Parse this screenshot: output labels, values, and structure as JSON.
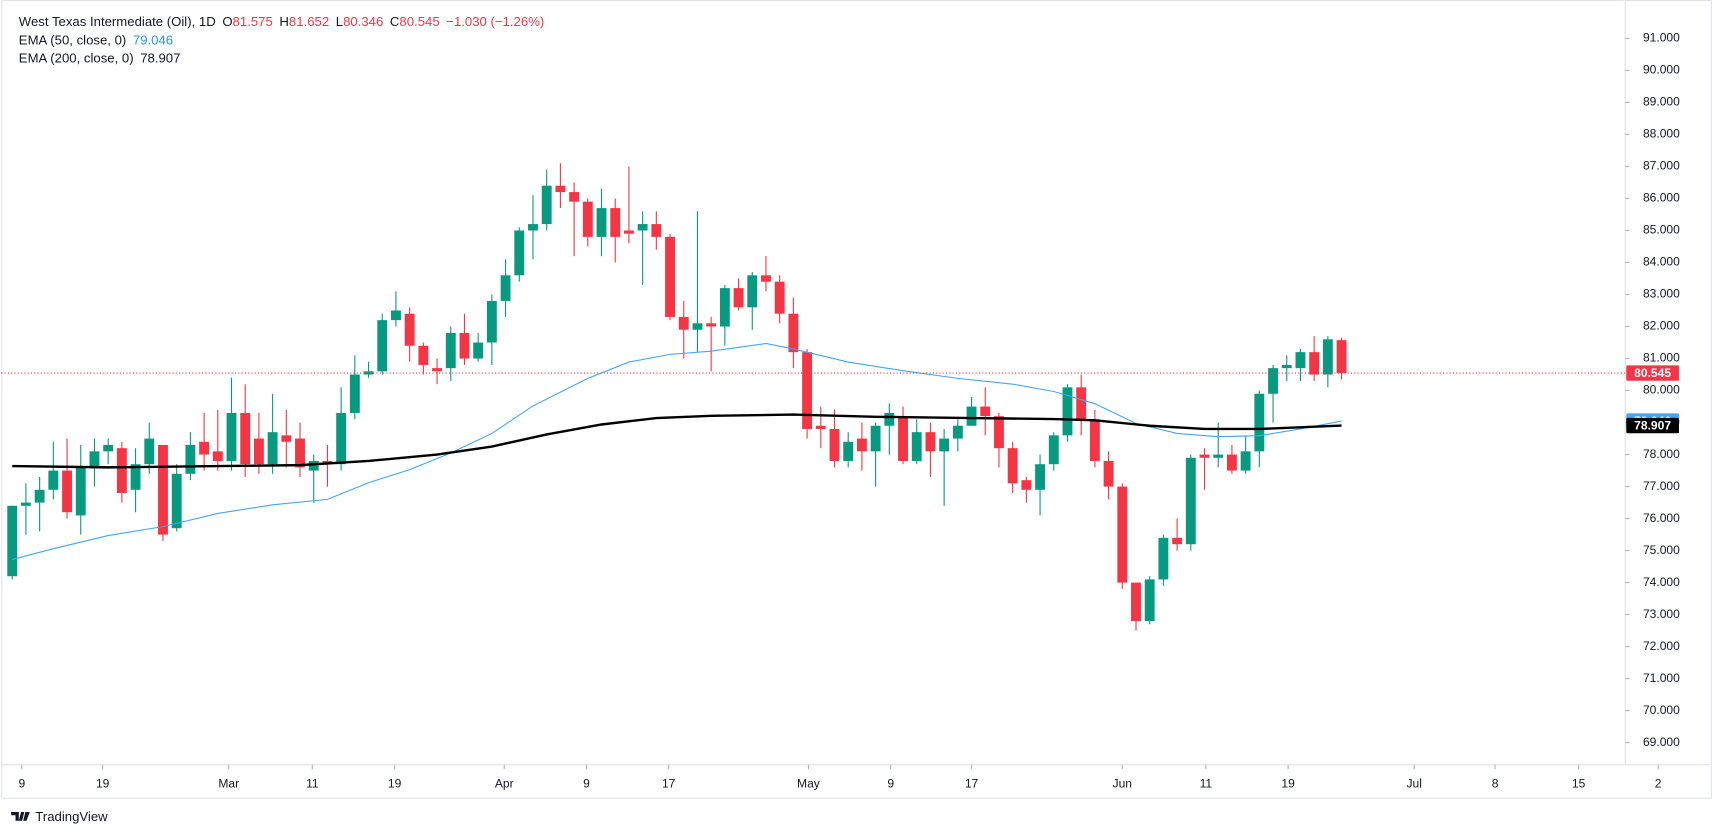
{
  "chart_data": {
    "type": "candlestick",
    "title": "West Texas Intermediate (Oil), 1D",
    "legend_labels": [
      "O",
      "H",
      "L",
      "C"
    ],
    "change": "−1.030 (−1.26%)",
    "up_color": "#089981",
    "down_color": "#f23645",
    "open": [
      74.2,
      76.4,
      76.5,
      76.9,
      77.5,
      76.1,
      77.6,
      78.1,
      78.2,
      76.9,
      77.7,
      78.3,
      75.7,
      77.4,
      78.4,
      78.1,
      77.8,
      79.3,
      78.5,
      77.7,
      78.6,
      78.5,
      77.5,
      77.8,
      77.7,
      79.3,
      80.5,
      80.6,
      82.2,
      82.4,
      81.4,
      80.7,
      80.7,
      81.8,
      81.0,
      81.5,
      82.8,
      83.6,
      85.0,
      85.2,
      86.4,
      86.2,
      85.9,
      84.8,
      85.7,
      85.0,
      85.0,
      85.2,
      84.8,
      82.3,
      81.9,
      82.1,
      82.0,
      83.2,
      82.6,
      83.6,
      83.4,
      82.4,
      81.2,
      78.9,
      78.8,
      77.8,
      78.5,
      78.1,
      78.9,
      79.2,
      77.8,
      78.7,
      78.1,
      78.5,
      78.9,
      79.5,
      79.2,
      78.2,
      77.2,
      76.9,
      77.7,
      78.6,
      80.1,
      79.1,
      77.8,
      77.0,
      74.0,
      72.8,
      74.1,
      75.4,
      75.2,
      78.0,
      77.9,
      78.0,
      77.5,
      78.1,
      79.9,
      80.7,
      80.7,
      81.2,
      80.5,
      81.575
    ],
    "high": [
      76.4,
      77.1,
      77.3,
      78.4,
      78.5,
      78.3,
      78.5,
      78.5,
      78.4,
      78.2,
      79.0,
      78.3,
      77.7,
      78.7,
      79.3,
      79.4,
      80.4,
      80.2,
      79.3,
      79.9,
      79.4,
      79.0,
      78.0,
      78.3,
      80.1,
      81.1,
      80.9,
      82.4,
      83.1,
      82.6,
      81.5,
      81.0,
      82.0,
      82.4,
      81.8,
      83.0,
      84.1,
      85.1,
      86.1,
      86.9,
      87.1,
      86.5,
      86.0,
      86.3,
      86.0,
      87.0,
      85.6,
      85.6,
      84.9,
      82.8,
      85.6,
      82.3,
      83.3,
      83.5,
      83.7,
      84.2,
      83.6,
      82.9,
      81.3,
      79.5,
      79.4,
      78.7,
      79.0,
      79.0,
      79.6,
      79.5,
      79.1,
      79.0,
      78.8,
      79.1,
      79.8,
      80.1,
      79.3,
      78.4,
      77.3,
      78.0,
      78.7,
      80.2,
      80.5,
      79.4,
      78.1,
      77.1,
      74.0,
      74.2,
      75.5,
      76.0,
      78.0,
      78.2,
      79.0,
      78.3,
      78.6,
      80.0,
      80.8,
      81.1,
      81.3,
      81.7,
      81.7,
      81.652
    ],
    "low": [
      74.1,
      75.5,
      75.6,
      76.6,
      76.0,
      75.5,
      77.0,
      77.7,
      76.5,
      76.2,
      77.4,
      75.3,
      75.6,
      77.2,
      77.5,
      77.5,
      77.5,
      77.3,
      77.4,
      77.4,
      77.6,
      77.3,
      76.5,
      77.0,
      77.5,
      79.1,
      80.4,
      80.5,
      82.0,
      80.9,
      80.5,
      80.2,
      80.3,
      80.8,
      80.9,
      80.8,
      82.3,
      83.4,
      84.1,
      85.0,
      85.7,
      84.2,
      84.5,
      84.2,
      84.0,
      84.6,
      83.3,
      84.4,
      82.2,
      81.0,
      81.2,
      80.6,
      81.4,
      82.5,
      81.9,
      83.1,
      82.1,
      80.7,
      78.5,
      78.2,
      77.6,
      77.6,
      77.5,
      77.0,
      78.0,
      77.7,
      77.7,
      77.3,
      76.4,
      78.1,
      78.9,
      78.6,
      77.6,
      76.8,
      76.5,
      76.1,
      77.5,
      78.4,
      78.6,
      77.6,
      76.6,
      73.8,
      72.5,
      72.7,
      73.9,
      75.0,
      75.0,
      76.9,
      77.6,
      77.4,
      77.4,
      77.6,
      79.0,
      80.3,
      80.3,
      80.3,
      80.1,
      80.346
    ],
    "close": [
      76.4,
      76.5,
      76.9,
      77.5,
      76.2,
      77.6,
      78.1,
      78.3,
      76.8,
      77.7,
      78.5,
      75.5,
      77.4,
      78.3,
      78.0,
      77.8,
      79.3,
      77.7,
      77.7,
      78.7,
      78.4,
      77.6,
      77.8,
      77.7,
      79.3,
      80.5,
      80.6,
      82.2,
      82.5,
      81.4,
      80.8,
      80.6,
      81.8,
      81.0,
      81.5,
      82.8,
      83.6,
      85.0,
      85.2,
      86.4,
      86.2,
      85.9,
      84.8,
      85.7,
      84.8,
      84.9,
      85.2,
      84.8,
      82.3,
      81.9,
      82.1,
      82.0,
      83.2,
      82.6,
      83.6,
      83.4,
      82.4,
      81.2,
      78.8,
      78.8,
      77.8,
      78.4,
      78.1,
      78.9,
      79.3,
      77.8,
      78.7,
      78.1,
      78.5,
      78.9,
      79.5,
      79.2,
      78.2,
      77.1,
      76.9,
      77.7,
      78.6,
      80.1,
      79.1,
      77.8,
      77.0,
      74.0,
      72.8,
      74.1,
      75.4,
      75.2,
      77.9,
      77.9,
      78.0,
      77.5,
      78.1,
      79.9,
      80.7,
      80.8,
      81.2,
      80.5,
      81.6,
      80.545
    ],
    "series": [
      {
        "name": "EMA (50, close, 0)",
        "color": "#42a5f5",
        "width": 1,
        "last": 79.046,
        "x": [
          0,
          3,
          7,
          11,
          15,
          19,
          23,
          26,
          29,
          32,
          35,
          38,
          42,
          45,
          48,
          51,
          55,
          57,
          61,
          65,
          69,
          73,
          76,
          79,
          82,
          85,
          88,
          91,
          94,
          97
        ],
        "values": [
          74.72,
          75.06,
          75.47,
          75.75,
          76.16,
          76.43,
          76.6,
          77.12,
          77.53,
          78.05,
          78.66,
          79.52,
          80.38,
          80.89,
          81.13,
          81.23,
          81.47,
          81.3,
          80.89,
          80.62,
          80.38,
          80.2,
          79.97,
          79.59,
          78.97,
          78.66,
          78.56,
          78.59,
          78.8,
          79.046
        ]
      },
      {
        "name": "EMA (200, close, 0)",
        "color": "#000000",
        "width": 2.2,
        "last": 78.907,
        "x": [
          0,
          7,
          15,
          21,
          26,
          31,
          35,
          39,
          43,
          47,
          51,
          57,
          63,
          70,
          76,
          79,
          83,
          87,
          91,
          97
        ],
        "values": [
          77.64,
          77.6,
          77.64,
          77.67,
          77.8,
          78.0,
          78.25,
          78.63,
          78.94,
          79.14,
          79.21,
          79.25,
          79.18,
          79.14,
          79.11,
          79.07,
          78.9,
          78.8,
          78.8,
          78.907
        ]
      }
    ],
    "xlim": [
      -0.8,
      123.7
    ],
    "xticks": [
      {
        "value": 0.7,
        "label": "9"
      },
      {
        "value": 6.6,
        "label": "19"
      },
      {
        "value": 15.8,
        "label": "Mar"
      },
      {
        "value": 21.9,
        "label": "11"
      },
      {
        "value": 27.9,
        "label": "19"
      },
      {
        "value": 35.9,
        "label": "Apr"
      },
      {
        "value": 41.9,
        "label": "9"
      },
      {
        "value": 47.9,
        "label": "17"
      },
      {
        "value": 58.1,
        "label": "May"
      },
      {
        "value": 64.1,
        "label": "9"
      },
      {
        "value": 70.0,
        "label": "17"
      },
      {
        "value": 81.0,
        "label": "Jun"
      },
      {
        "value": 87.1,
        "label": "11"
      },
      {
        "value": 93.1,
        "label": "19"
      },
      {
        "value": 102.3,
        "label": "Jul"
      },
      {
        "value": 108.2,
        "label": "8"
      },
      {
        "value": 114.3,
        "label": "15"
      },
      {
        "value": 120.1,
        "label": "2"
      }
    ],
    "ylim": [
      68.31,
      92.2
    ],
    "yticks": [
      {
        "value": 69,
        "label": "69.000"
      },
      {
        "value": 70,
        "label": "70.000"
      },
      {
        "value": 71,
        "label": "71.000"
      },
      {
        "value": 72,
        "label": "72.000"
      },
      {
        "value": 73,
        "label": "73.000"
      },
      {
        "value": 74,
        "label": "74.000"
      },
      {
        "value": 75,
        "label": "75.000"
      },
      {
        "value": 76,
        "label": "76.000"
      },
      {
        "value": 77,
        "label": "77.000"
      },
      {
        "value": 78,
        "label": "78.000"
      },
      {
        "value": 79,
        "label": "79.000"
      },
      {
        "value": 80,
        "label": "80.000"
      },
      {
        "value": 81,
        "label": "81.000"
      },
      {
        "value": 82,
        "label": "82.000"
      },
      {
        "value": 83,
        "label": "83.000"
      },
      {
        "value": 84,
        "label": "84.000"
      },
      {
        "value": 85,
        "label": "85.000"
      },
      {
        "value": 86,
        "label": "86.000"
      },
      {
        "value": 87,
        "label": "87.000"
      },
      {
        "value": 88,
        "label": "88.000"
      },
      {
        "value": 89,
        "label": "89.000"
      },
      {
        "value": 90,
        "label": "90.000"
      },
      {
        "value": 91,
        "label": "91.000"
      }
    ],
    "watermark": "TradingView"
  }
}
